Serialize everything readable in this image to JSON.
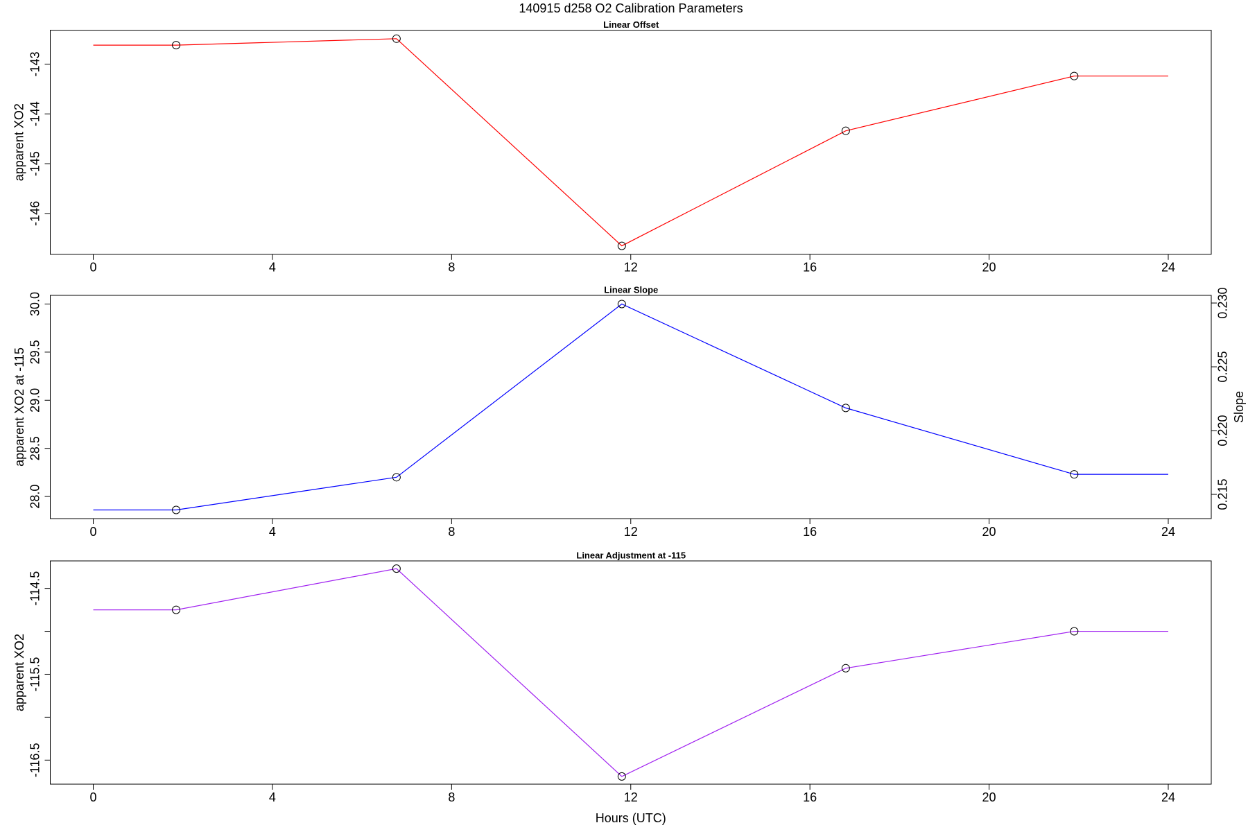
{
  "title": "140915   d258   O2 Calibration Parameters",
  "chart_data": [
    {
      "type": "line",
      "title": "Linear Offset",
      "ylabel": "apparent XO2",
      "x": [
        0,
        1.85,
        6.77,
        11.8,
        16.8,
        21.9,
        24
      ],
      "values": [
        -142.62,
        -142.62,
        -142.49,
        -146.65,
        -144.34,
        -143.24,
        -143.24
      ],
      "color": "#ff0000",
      "xlim": [
        -0.96,
        24.96
      ],
      "ylim": [
        -146.82,
        -142.32
      ],
      "xticks": [
        0,
        4,
        8,
        12,
        16,
        20,
        24
      ],
      "yticks": [
        -146,
        -145,
        -144,
        -143
      ]
    },
    {
      "type": "line",
      "title": "Linear Slope",
      "ylabel": "apparent XO2 at -115",
      "y2label": "Slope",
      "x": [
        0,
        1.85,
        6.77,
        11.8,
        16.8,
        21.9,
        24
      ],
      "values": [
        27.86,
        27.86,
        28.2,
        30.0,
        28.92,
        28.23,
        28.23
      ],
      "color": "#0000ff",
      "xlim": [
        -0.96,
        24.96
      ],
      "ylim": [
        27.77,
        30.09
      ],
      "xticks": [
        0,
        4,
        8,
        12,
        16,
        20,
        24
      ],
      "yticks": [
        {
          "value": 28,
          "label": "28.0"
        },
        28.5,
        {
          "value": 29,
          "label": "29.0"
        },
        29.5,
        {
          "value": 30,
          "label": "30.0"
        }
      ],
      "y2lim": [
        0.2131,
        0.2306
      ],
      "y2ticks": [
        {
          "value": 0.215,
          "label": "0.215"
        },
        {
          "value": 0.22,
          "label": "0.220"
        },
        {
          "value": 0.225,
          "label": "0.225"
        },
        {
          "value": 0.23,
          "label": "0.230"
        }
      ]
    },
    {
      "type": "line",
      "title": "Linear Adjustment at -115",
      "ylabel": "apparent XO2",
      "xlabel": "Hours (UTC)",
      "x": [
        0,
        1.85,
        6.77,
        11.8,
        16.8,
        21.9,
        24
      ],
      "values": [
        -114.75,
        -114.75,
        -114.27,
        -116.69,
        -115.43,
        -115.0,
        -115.0
      ],
      "color": "#a020f0",
      "xlim": [
        -0.96,
        24.96
      ],
      "ylim": [
        -116.78,
        -114.18
      ],
      "xticks": [
        0,
        4,
        8,
        12,
        16,
        20,
        24
      ],
      "yticks": [
        {
          "value": -116.5,
          "label": "-116.5"
        },
        {
          "value": -116,
          "label": null
        },
        {
          "value": -115.5,
          "label": "-115.5"
        },
        {
          "value": -115,
          "label": null
        },
        {
          "value": -114.5,
          "label": "-114.5"
        }
      ]
    }
  ]
}
